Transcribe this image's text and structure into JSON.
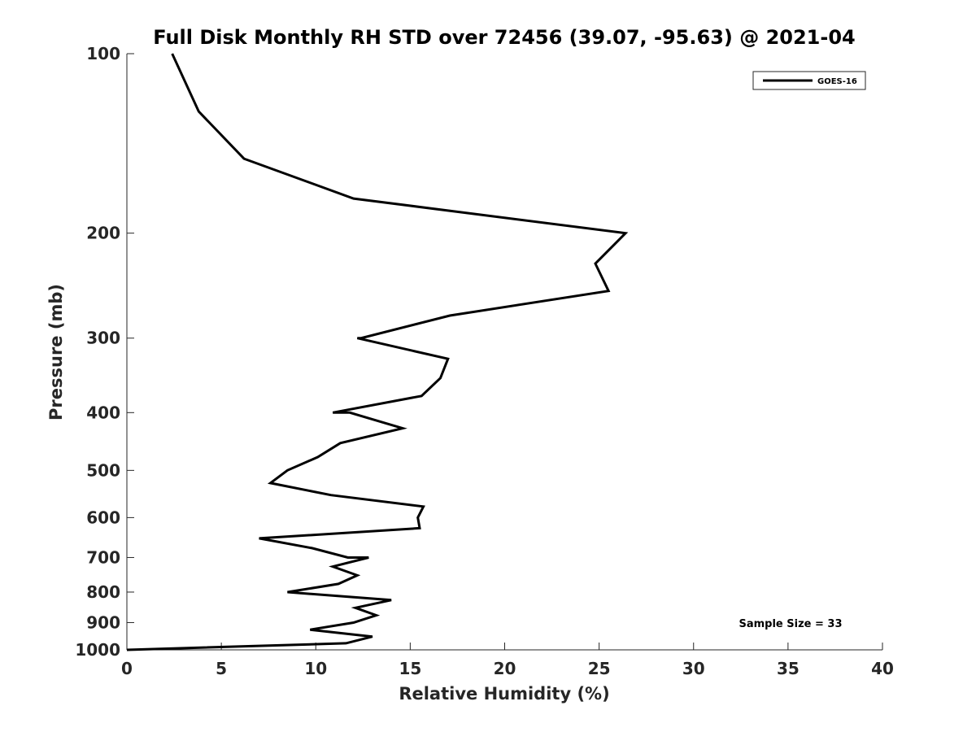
{
  "chart_data": {
    "type": "line",
    "title": "Full Disk Monthly RH STD over 72456 (39.07, -95.63) @ 2021-04",
    "xlabel": "Relative Humidity (%)",
    "ylabel": "Pressure (mb)",
    "xlim": [
      0,
      40
    ],
    "ylim": [
      100,
      1000
    ],
    "yscale": "log",
    "y_reversed": true,
    "grid": false,
    "legend_position": "top-right",
    "xticks": [
      "0",
      "5",
      "10",
      "15",
      "20",
      "25",
      "30",
      "35",
      "40"
    ],
    "yticks": [
      "100",
      "200",
      "300",
      "400",
      "500",
      "600",
      "700",
      "800",
      "900",
      "1000"
    ],
    "series": [
      {
        "name": "GOES-16",
        "color": "#000000",
        "points": [
          [
            2.4,
            100
          ],
          [
            3.8,
            125
          ],
          [
            6.2,
            150
          ],
          [
            12.0,
            175
          ],
          [
            26.4,
            200
          ],
          [
            24.8,
            225
          ],
          [
            25.5,
            250
          ],
          [
            17.1,
            275
          ],
          [
            12.4,
            300
          ],
          [
            12.2,
            300
          ],
          [
            17.0,
            325
          ],
          [
            16.6,
            350
          ],
          [
            15.6,
            375
          ],
          [
            10.9,
            400
          ],
          [
            11.8,
            400
          ],
          [
            14.6,
            425
          ],
          [
            11.3,
            450
          ],
          [
            10.1,
            475
          ],
          [
            8.5,
            500
          ],
          [
            7.6,
            525
          ],
          [
            10.8,
            550
          ],
          [
            15.7,
            575
          ],
          [
            15.4,
            600
          ],
          [
            15.5,
            625
          ],
          [
            7.0,
            650
          ],
          [
            9.8,
            675
          ],
          [
            11.7,
            700
          ],
          [
            12.8,
            700
          ],
          [
            10.9,
            725
          ],
          [
            12.2,
            750
          ],
          [
            11.2,
            775
          ],
          [
            8.5,
            800
          ],
          [
            8.5,
            800
          ],
          [
            14.0,
            825
          ],
          [
            12.1,
            850
          ],
          [
            13.2,
            875
          ],
          [
            12.0,
            900
          ],
          [
            9.7,
            925
          ],
          [
            13.0,
            950
          ],
          [
            11.6,
            975
          ],
          [
            0.0,
            1000
          ]
        ]
      }
    ],
    "annotation": "Sample Size = 33"
  }
}
